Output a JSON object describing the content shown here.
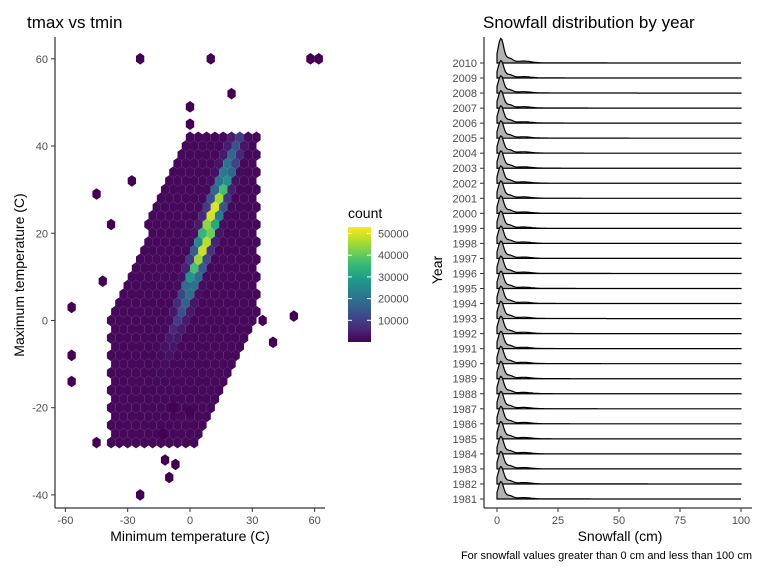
{
  "chart_data": [
    {
      "type": "hexbin",
      "title": "tmax vs tmin",
      "xlabel": "Minimum temperature (C)",
      "ylabel": "Maximum temperature (C)",
      "xlim": [
        -65,
        65
      ],
      "ylim": [
        -43,
        65
      ],
      "xticks": [
        -60,
        -30,
        0,
        30,
        60
      ],
      "yticks": [
        -40,
        -20,
        0,
        20,
        40,
        60
      ],
      "xtick_labels": [
        "-60",
        "-30",
        "0",
        "30",
        "60"
      ],
      "ytick_labels": [
        "-40",
        "-20",
        "0",
        "20",
        "40",
        "60"
      ],
      "legend": {
        "title": "count",
        "placement": "right",
        "range": [
          0,
          53000
        ],
        "ticks": [
          10000,
          20000,
          30000,
          40000,
          50000
        ],
        "tick_labels": [
          "10000",
          "20000",
          "30000",
          "40000",
          "50000"
        ]
      },
      "colormap": [
        "#440154",
        "#482878",
        "#3e4989",
        "#31688e",
        "#26828e",
        "#1f9e89",
        "#35b779",
        "#6ece58",
        "#b5de2b",
        "#fde725"
      ],
      "grid": false
    },
    {
      "type": "ridgeline",
      "title": "Snowfall distribution by year",
      "xlabel": "Snowfall (cm)",
      "ylabel": "Year",
      "xlim": [
        0,
        100
      ],
      "xticks": [
        0,
        25,
        50,
        75,
        100
      ],
      "xtick_labels": [
        "0",
        "25",
        "50",
        "75",
        "100"
      ],
      "categories": [
        "1981",
        "1982",
        "1983",
        "1984",
        "1985",
        "1986",
        "1987",
        "1988",
        "1989",
        "1990",
        "1991",
        "1992",
        "1993",
        "1994",
        "1995",
        "1996",
        "1997",
        "1998",
        "1999",
        "2000",
        "2001",
        "2002",
        "2003",
        "2004",
        "2005",
        "2006",
        "2007",
        "2008",
        "2009",
        "2010"
      ],
      "fill_color": "#b3b3b3",
      "line_color": "#000000",
      "caption": "For snowfall values greater than 0 cm and less than 100 cm",
      "grid": false
    }
  ]
}
